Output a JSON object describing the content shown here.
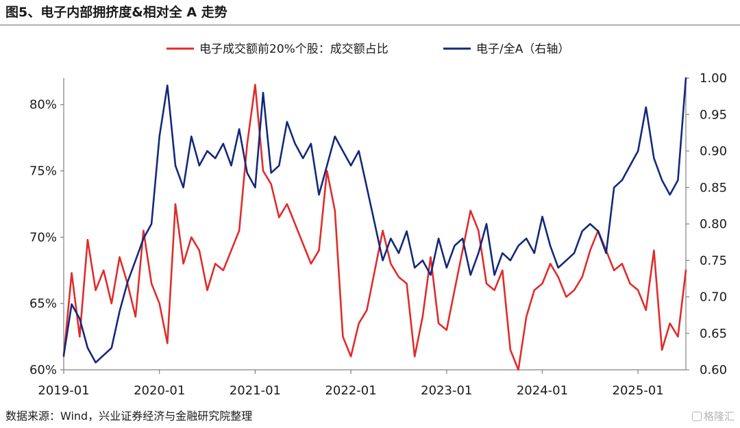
{
  "title": "图5、电子内部拥挤度&相对全 A 走势",
  "source": "数据来源：Wind，兴业证券经济与金融研究院整理",
  "watermark": "格隆汇",
  "chart_data": {
    "type": "line",
    "title": "",
    "xlabel": "",
    "ylabel_left": "",
    "ylabel_right": "",
    "grid": false,
    "legend_position": "top-center",
    "x_range": [
      "2019-01",
      "2025-07"
    ],
    "x_ticks": [
      "2019-01",
      "2020-01",
      "2021-01",
      "2022-01",
      "2023-01",
      "2024-01",
      "2025-01"
    ],
    "y_left": {
      "min": 60,
      "max": 82,
      "ticks": [
        "60%",
        "65%",
        "70%",
        "75%",
        "80%"
      ]
    },
    "y_right": {
      "min": 0.6,
      "max": 1.0,
      "ticks": [
        "0.60",
        "0.65",
        "0.70",
        "0.75",
        "0.80",
        "0.85",
        "0.90",
        "0.95",
        "1.00"
      ]
    },
    "series": [
      {
        "name": "电子成交额前20%个股：成交额占比",
        "axis": "left",
        "color": "#e02b2b",
        "x": [
          "2019-01",
          "2019-02",
          "2019-03",
          "2019-04",
          "2019-05",
          "2019-06",
          "2019-07",
          "2019-08",
          "2019-09",
          "2019-10",
          "2019-11",
          "2019-12",
          "2020-01",
          "2020-02",
          "2020-03",
          "2020-04",
          "2020-05",
          "2020-06",
          "2020-07",
          "2020-08",
          "2020-09",
          "2020-10",
          "2020-11",
          "2020-12",
          "2021-01",
          "2021-02",
          "2021-03",
          "2021-04",
          "2021-05",
          "2021-06",
          "2021-07",
          "2021-08",
          "2021-09",
          "2021-10",
          "2021-11",
          "2021-12",
          "2022-01",
          "2022-02",
          "2022-03",
          "2022-04",
          "2022-05",
          "2022-06",
          "2022-07",
          "2022-08",
          "2022-09",
          "2022-10",
          "2022-11",
          "2022-12",
          "2023-01",
          "2023-02",
          "2023-03",
          "2023-04",
          "2023-05",
          "2023-06",
          "2023-07",
          "2023-08",
          "2023-09",
          "2023-10",
          "2023-11",
          "2023-12",
          "2024-01",
          "2024-02",
          "2024-03",
          "2024-04",
          "2024-05",
          "2024-06",
          "2024-07",
          "2024-08",
          "2024-09",
          "2024-10",
          "2024-11",
          "2024-12",
          "2025-01",
          "2025-02",
          "2025-03",
          "2025-04",
          "2025-05",
          "2025-06",
          "2025-07"
        ],
        "values": [
          61.0,
          67.3,
          62.5,
          69.8,
          66.0,
          67.5,
          65.0,
          68.5,
          66.5,
          64.0,
          70.5,
          66.5,
          65.0,
          62.0,
          72.5,
          68.0,
          70.0,
          69.0,
          66.0,
          68.0,
          67.5,
          69.0,
          70.5,
          77.0,
          81.5,
          75.0,
          74.0,
          71.5,
          72.5,
          71.0,
          69.5,
          68.0,
          69.0,
          75.0,
          72.0,
          62.5,
          61.0,
          63.5,
          64.5,
          67.5,
          70.5,
          68.0,
          67.0,
          66.5,
          61.0,
          64.0,
          68.5,
          63.5,
          63.0,
          66.0,
          69.0,
          72.0,
          70.5,
          66.5,
          66.0,
          67.5,
          61.5,
          60.0,
          64.0,
          66.0,
          66.5,
          68.0,
          67.0,
          65.5,
          66.0,
          67.0,
          69.0,
          70.5,
          69.0,
          67.5,
          68.0,
          66.5,
          66.0,
          64.5,
          69.0,
          61.5,
          63.5,
          62.5,
          67.5
        ]
      },
      {
        "name": "电子/全A（右轴）",
        "axis": "right",
        "color": "#14287a",
        "x": [
          "2019-01",
          "2019-02",
          "2019-03",
          "2019-04",
          "2019-05",
          "2019-06",
          "2019-07",
          "2019-08",
          "2019-09",
          "2019-10",
          "2019-11",
          "2019-12",
          "2020-01",
          "2020-02",
          "2020-03",
          "2020-04",
          "2020-05",
          "2020-06",
          "2020-07",
          "2020-08",
          "2020-09",
          "2020-10",
          "2020-11",
          "2020-12",
          "2021-01",
          "2021-02",
          "2021-03",
          "2021-04",
          "2021-05",
          "2021-06",
          "2021-07",
          "2021-08",
          "2021-09",
          "2021-10",
          "2021-11",
          "2021-12",
          "2022-01",
          "2022-02",
          "2022-03",
          "2022-04",
          "2022-05",
          "2022-06",
          "2022-07",
          "2022-08",
          "2022-09",
          "2022-10",
          "2022-11",
          "2022-12",
          "2023-01",
          "2023-02",
          "2023-03",
          "2023-04",
          "2023-05",
          "2023-06",
          "2023-07",
          "2023-08",
          "2023-09",
          "2023-10",
          "2023-11",
          "2023-12",
          "2024-01",
          "2024-02",
          "2024-03",
          "2024-04",
          "2024-05",
          "2024-06",
          "2024-07",
          "2024-08",
          "2024-09",
          "2024-10",
          "2024-11",
          "2024-12",
          "2025-01",
          "2025-02",
          "2025-03",
          "2025-04",
          "2025-05",
          "2025-06",
          "2025-07"
        ],
        "values": [
          0.62,
          0.69,
          0.67,
          0.63,
          0.61,
          0.62,
          0.63,
          0.68,
          0.72,
          0.75,
          0.78,
          0.8,
          0.92,
          0.99,
          0.88,
          0.85,
          0.92,
          0.88,
          0.9,
          0.89,
          0.91,
          0.88,
          0.93,
          0.87,
          0.85,
          0.98,
          0.87,
          0.88,
          0.94,
          0.91,
          0.89,
          0.91,
          0.84,
          0.88,
          0.92,
          0.9,
          0.88,
          0.9,
          0.85,
          0.8,
          0.75,
          0.78,
          0.76,
          0.79,
          0.74,
          0.75,
          0.73,
          0.78,
          0.74,
          0.77,
          0.78,
          0.73,
          0.76,
          0.8,
          0.73,
          0.76,
          0.75,
          0.77,
          0.78,
          0.76,
          0.81,
          0.77,
          0.74,
          0.75,
          0.76,
          0.79,
          0.8,
          0.79,
          0.76,
          0.85,
          0.86,
          0.88,
          0.9,
          0.96,
          0.89,
          0.86,
          0.84,
          0.86,
          1.0
        ]
      }
    ]
  }
}
